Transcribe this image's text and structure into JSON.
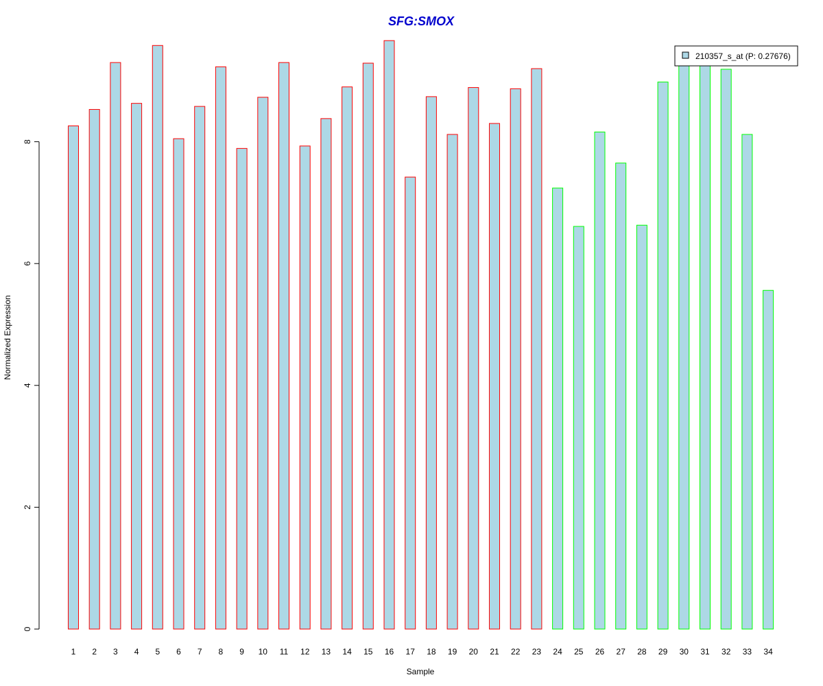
{
  "chart_data": {
    "type": "bar",
    "title": "SFG:SMOX",
    "xlabel": "Sample",
    "ylabel": "Normalized Expression",
    "ylim": [
      0,
      9.8
    ],
    "yticks": [
      0,
      2,
      4,
      6,
      8
    ],
    "categories": [
      "1",
      "2",
      "3",
      "4",
      "5",
      "6",
      "7",
      "8",
      "9",
      "10",
      "11",
      "12",
      "13",
      "14",
      "15",
      "16",
      "17",
      "18",
      "19",
      "20",
      "21",
      "22",
      "23",
      "24",
      "25",
      "26",
      "27",
      "28",
      "29",
      "30",
      "31",
      "32",
      "33",
      "34"
    ],
    "series": [
      {
        "name": "210357_s_at (P: 0.27676)",
        "values": [
          8.26,
          8.53,
          9.3,
          8.63,
          9.58,
          8.05,
          8.58,
          9.23,
          7.89,
          8.73,
          9.3,
          7.93,
          8.38,
          8.9,
          9.29,
          9.66,
          7.42,
          8.74,
          8.12,
          8.89,
          8.3,
          8.87,
          9.2,
          7.24,
          6.61,
          8.16,
          7.65,
          6.63,
          8.98,
          9.26,
          9.28,
          9.19,
          8.12,
          5.56
        ]
      }
    ],
    "legend": {
      "position": "top-right",
      "label": "210357_s_at (P: 0.27676)"
    },
    "grid": false
  },
  "colors": {
    "bar_fill": "#add8e6",
    "group1_border": "#ff0000",
    "group2_border": "#00ff00",
    "title": "#0000cd",
    "axis": "#000000"
  },
  "groups": {
    "group1_count": 23,
    "group2_count": 11
  }
}
